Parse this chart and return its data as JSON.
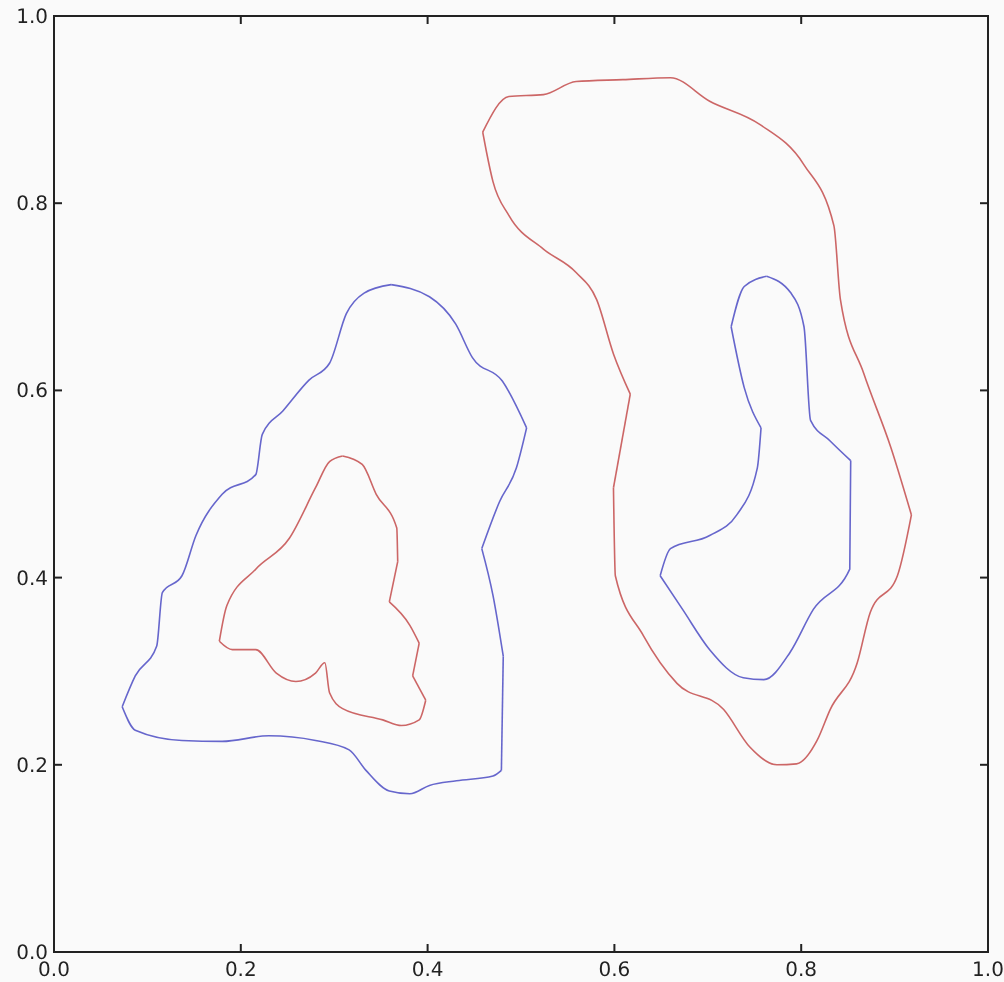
{
  "chart_data": {
    "type": "line",
    "xlim": [
      0,
      1
    ],
    "ylim": [
      0,
      1
    ],
    "xticks": [
      {
        "value": 0,
        "label": "0.0"
      },
      0.2,
      0.4,
      0.6,
      0.8,
      {
        "value": 1,
        "label": "1.0"
      }
    ],
    "yticks": [
      {
        "value": 0,
        "label": "0.0"
      },
      0.2,
      0.4,
      0.6,
      0.8,
      {
        "value": 1,
        "label": "1.0"
      }
    ],
    "grid": false,
    "line_style": "solid",
    "marker": "none",
    "series": [
      {
        "color": "#6666cc",
        "x": [
          0.361,
          0.402,
          0.43,
          0.448,
          0.48,
          0.506
        ],
        "values": [
          0.713,
          0.7,
          0.671,
          0.635,
          0.61,
          0.56
        ]
      },
      {
        "color": "#6666cc",
        "x": [
          0.506,
          0.495,
          0.477,
          0.458
        ],
        "values": [
          0.56,
          0.517,
          0.481,
          0.431
        ]
      },
      {
        "color": "#6666cc",
        "x": [
          0.458,
          0.47,
          0.481
        ],
        "values": [
          0.431,
          0.381,
          0.316
        ]
      },
      {
        "color": "#6666cc",
        "x": [
          0.481,
          0.479
        ],
        "values": [
          0.316,
          0.194
        ]
      },
      {
        "color": "#6666cc",
        "x": [
          0.479,
          0.47,
          0.431,
          0.402,
          0.381,
          0.359,
          0.334,
          0.316,
          0.28,
          0.23,
          0.18,
          0.137,
          0.087,
          0.073
        ],
        "values": [
          0.194,
          0.188,
          0.183,
          0.178,
          0.169,
          0.172,
          0.194,
          0.216,
          0.226,
          0.231,
          0.225,
          0.226,
          0.237,
          0.262
        ]
      },
      {
        "color": "#6666cc",
        "x": [
          0.073,
          0.087,
          0.11,
          0.116,
          0.137,
          0.152,
          0.18,
          0.216,
          0.223,
          0.245,
          0.273,
          0.295,
          0.313,
          0.332,
          0.361
        ],
        "values": [
          0.262,
          0.295,
          0.327,
          0.384,
          0.402,
          0.445,
          0.489,
          0.51,
          0.553,
          0.578,
          0.611,
          0.629,
          0.682,
          0.704,
          0.713
        ]
      },
      {
        "color": "#cc6666",
        "x": [
          0.309,
          0.33,
          0.345,
          0.367,
          0.368
        ],
        "values": [
          0.53,
          0.521,
          0.489,
          0.453,
          0.417
        ]
      },
      {
        "color": "#cc6666",
        "x": [
          0.368,
          0.359
        ],
        "values": [
          0.417,
          0.374
        ]
      },
      {
        "color": "#cc6666",
        "x": [
          0.359,
          0.381,
          0.391
        ],
        "values": [
          0.374,
          0.349,
          0.33
        ]
      },
      {
        "color": "#cc6666",
        "x": [
          0.391,
          0.384
        ],
        "values": [
          0.33,
          0.295
        ]
      },
      {
        "color": "#cc6666",
        "x": [
          0.384,
          0.398
        ],
        "values": [
          0.295,
          0.269
        ]
      },
      {
        "color": "#cc6666",
        "x": [
          0.398,
          0.391,
          0.372,
          0.352,
          0.309,
          0.295,
          0.29,
          0.28,
          0.259,
          0.238,
          0.216,
          0.191,
          0.177
        ],
        "values": [
          0.269,
          0.248,
          0.242,
          0.248,
          0.26,
          0.277,
          0.309,
          0.298,
          0.289,
          0.298,
          0.323,
          0.323,
          0.332
        ]
      },
      {
        "color": "#cc6666",
        "x": [
          0.177,
          0.185,
          0.216,
          0.252,
          0.28,
          0.295,
          0.309
        ],
        "values": [
          0.332,
          0.37,
          0.409,
          0.442,
          0.496,
          0.524,
          0.53
        ]
      },
      {
        "color": "#cc6666",
        "x": [
          0.459,
          0.487,
          0.524,
          0.559,
          0.609,
          0.66,
          0.702,
          0.756,
          0.803,
          0.835,
          0.842,
          0.867,
          0.896,
          0.918
        ],
        "values": [
          0.876,
          0.914,
          0.916,
          0.93,
          0.932,
          0.934,
          0.909,
          0.884,
          0.841,
          0.776,
          0.697,
          0.618,
          0.539,
          0.467
        ]
      },
      {
        "color": "#cc6666",
        "x": [
          0.918,
          0.903,
          0.874,
          0.86,
          0.831,
          0.817,
          0.795,
          0.774,
          0.745,
          0.717,
          0.667,
          0.631,
          0.601,
          0.599
        ],
        "values": [
          0.467,
          0.402,
          0.363,
          0.309,
          0.259,
          0.226,
          0.201,
          0.2,
          0.219,
          0.259,
          0.287,
          0.338,
          0.402,
          0.496
        ]
      },
      {
        "color": "#cc6666",
        "x": [
          0.599,
          0.617
        ],
        "values": [
          0.496,
          0.596
        ]
      },
      {
        "color": "#cc6666",
        "x": [
          0.617,
          0.599,
          0.581,
          0.559,
          0.524,
          0.487,
          0.47,
          0.463,
          0.459
        ],
        "values": [
          0.596,
          0.639,
          0.697,
          0.726,
          0.751,
          0.787,
          0.823,
          0.855,
          0.876
        ]
      },
      {
        "color": "#6666cc",
        "x": [
          0.763,
          0.789,
          0.803,
          0.81,
          0.831,
          0.853
        ],
        "values": [
          0.722,
          0.704,
          0.668,
          0.568,
          0.546,
          0.525
        ]
      },
      {
        "color": "#6666cc",
        "x": [
          0.853,
          0.852,
          0.813,
          0.788,
          0.76,
          0.738,
          0.702,
          0.673,
          0.649
        ],
        "values": [
          0.525,
          0.409,
          0.366,
          0.32,
          0.291,
          0.293,
          0.323,
          0.366,
          0.402
        ]
      },
      {
        "color": "#6666cc",
        "x": [
          0.649,
          0.66,
          0.702,
          0.731,
          0.753,
          0.757
        ],
        "values": [
          0.402,
          0.431,
          0.445,
          0.467,
          0.517,
          0.56
        ]
      },
      {
        "color": "#6666cc",
        "x": [
          0.757,
          0.739,
          0.725
        ],
        "values": [
          0.56,
          0.603,
          0.668
        ]
      },
      {
        "color": "#6666cc",
        "x": [
          0.725,
          0.739,
          0.763
        ],
        "values": [
          0.668,
          0.711,
          0.722
        ]
      }
    ]
  }
}
